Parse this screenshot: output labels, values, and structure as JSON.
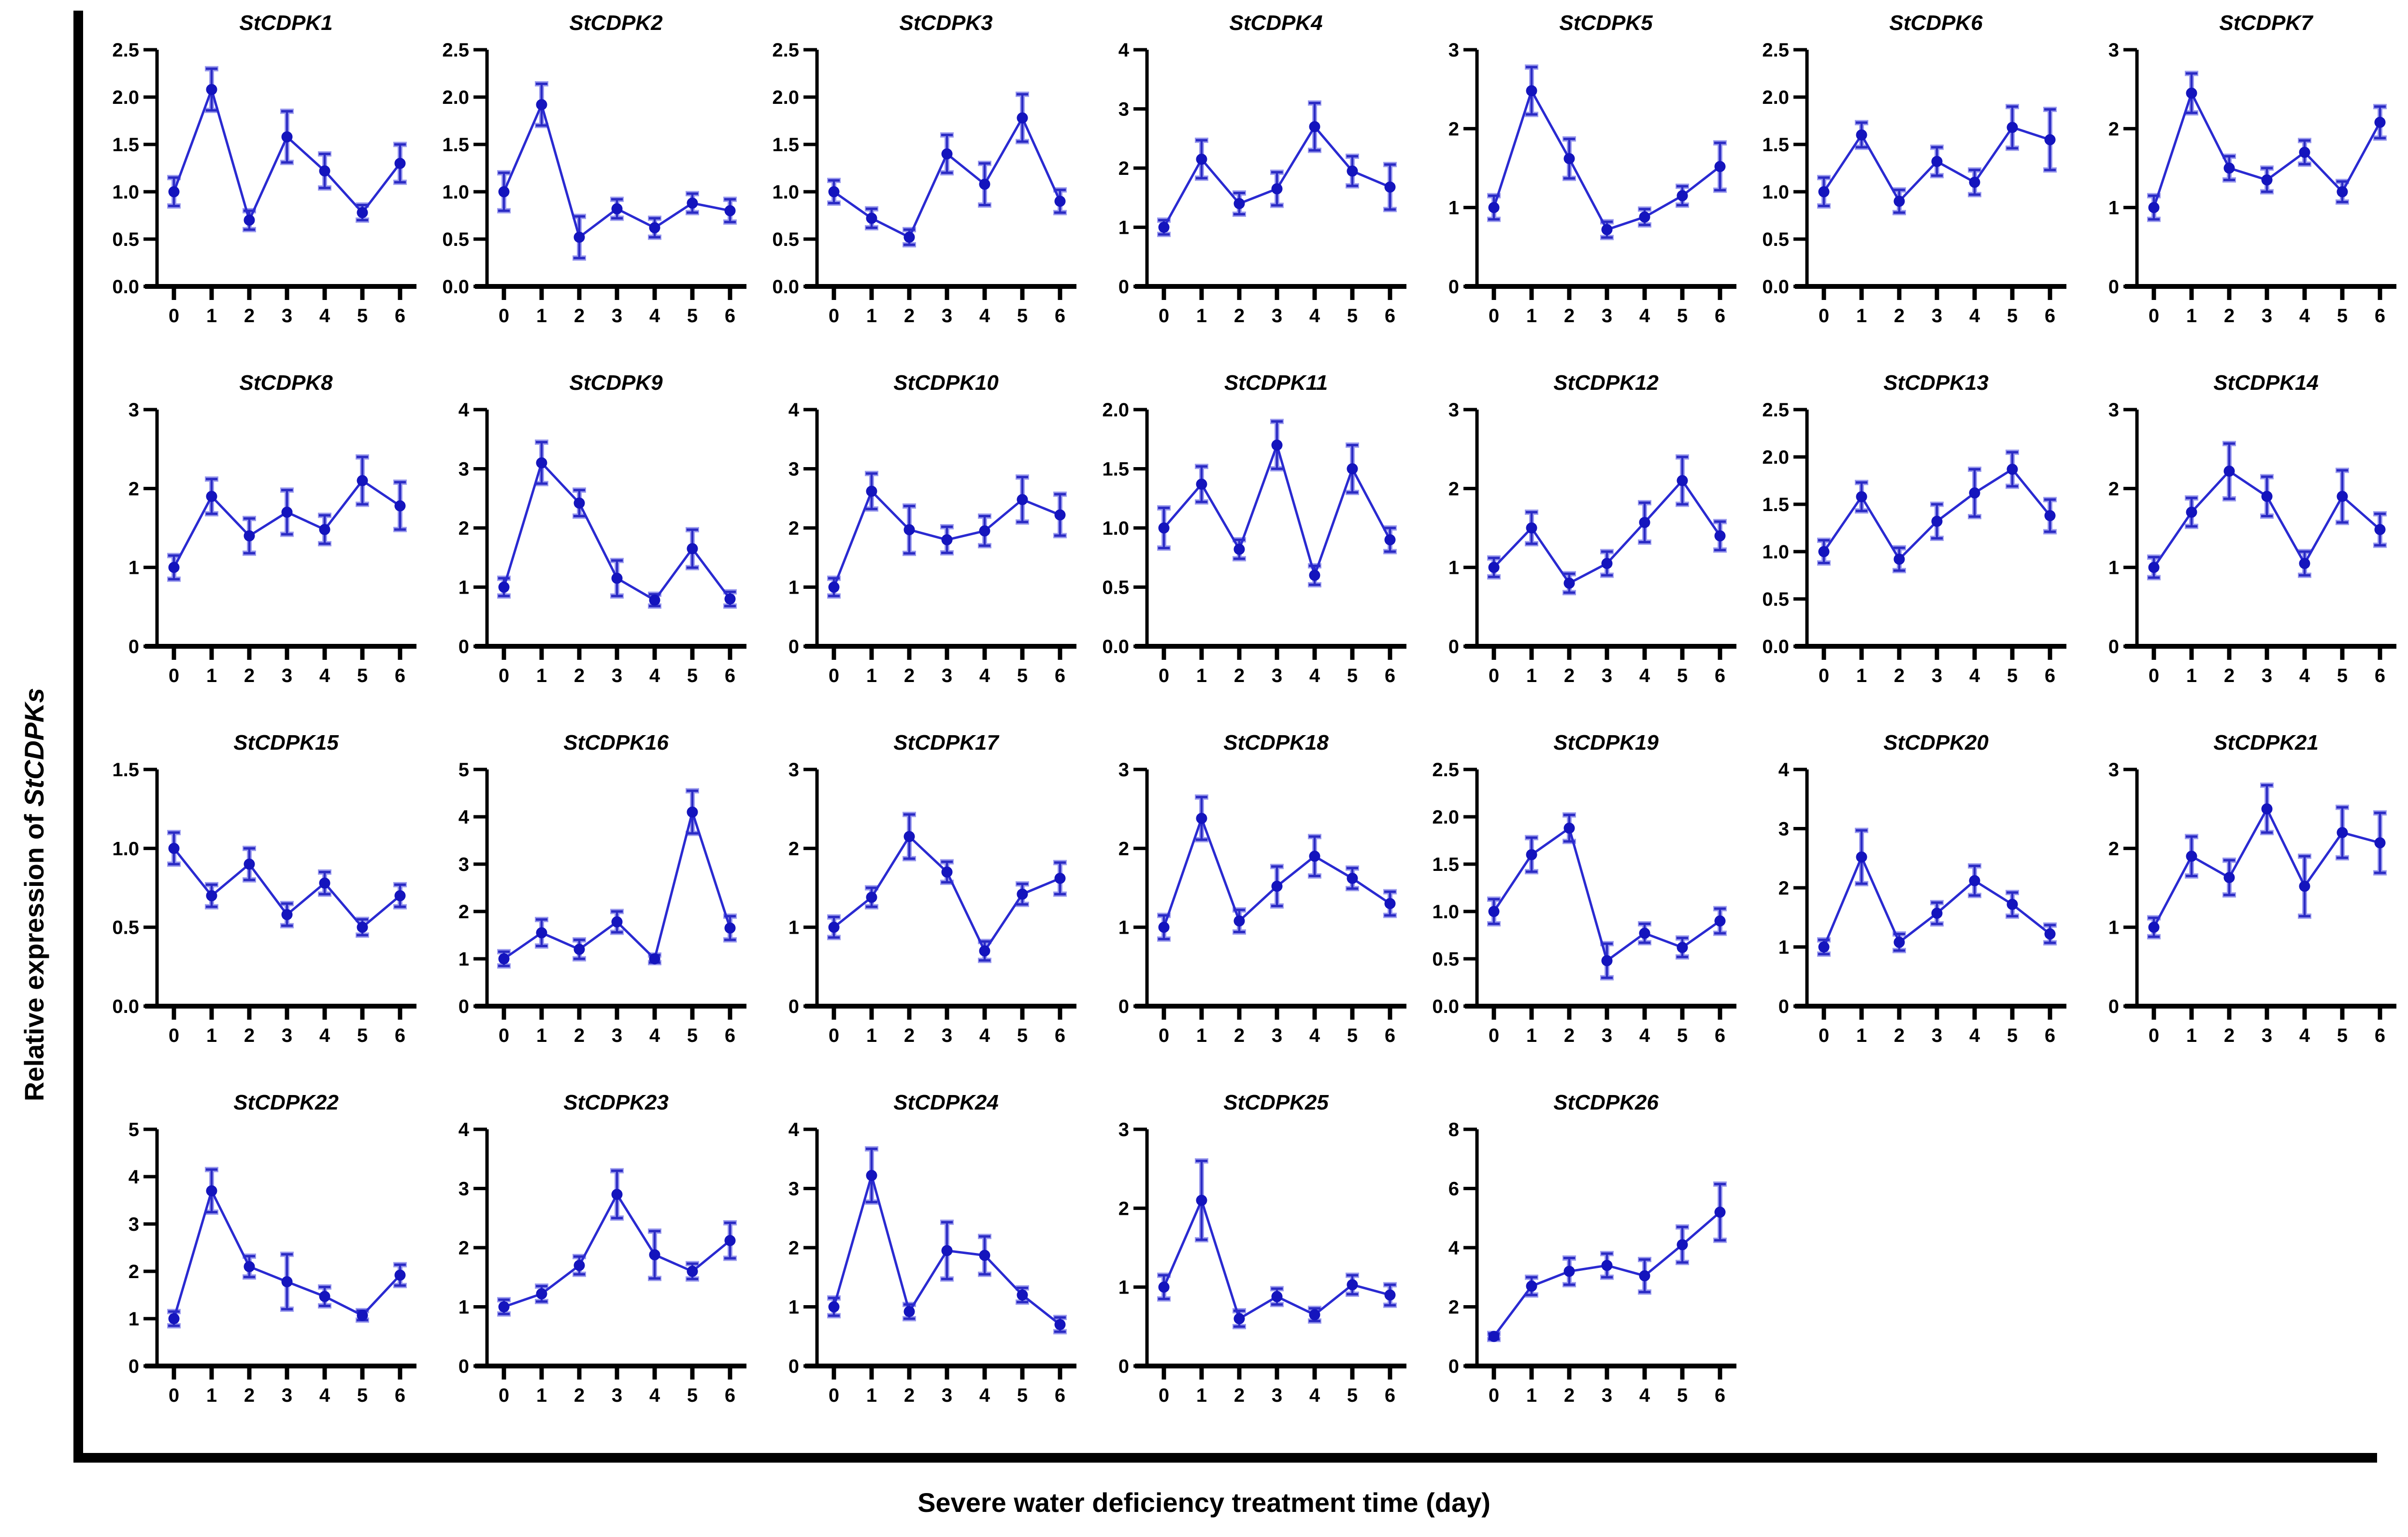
{
  "figure": {
    "y_axis_label_prefix": "Relative expression of ",
    "y_axis_label_gene": "StCDPKs",
    "x_axis_label": "Severe water deficiency treatment time (day)",
    "x_ticks": [
      0,
      1,
      2,
      3,
      4,
      5,
      6
    ],
    "colors": {
      "line": "#2a2ad1",
      "marker": "#1414bd",
      "error_bar_core": "#2b2bc4",
      "error_bar_halo": "#9a9aee",
      "axis": "#000000",
      "background": "#ffffff"
    }
  },
  "chart_data": [
    {
      "type": "line",
      "title": "StCDPK1",
      "x": [
        0,
        1,
        2,
        3,
        4,
        5,
        6
      ],
      "values": [
        1.0,
        2.08,
        0.7,
        1.58,
        1.22,
        0.78,
        1.3
      ],
      "errors": [
        0.15,
        0.22,
        0.1,
        0.27,
        0.18,
        0.08,
        0.2
      ],
      "ylim": [
        0,
        2.5
      ],
      "ytick_step": 0.5,
      "ytick_decimals": 1
    },
    {
      "type": "line",
      "title": "StCDPK2",
      "x": [
        0,
        1,
        2,
        3,
        4,
        5,
        6
      ],
      "values": [
        1.0,
        1.92,
        0.52,
        0.82,
        0.62,
        0.88,
        0.8
      ],
      "errors": [
        0.2,
        0.22,
        0.22,
        0.1,
        0.1,
        0.1,
        0.12
      ],
      "ylim": [
        0,
        2.5
      ],
      "ytick_step": 0.5,
      "ytick_decimals": 1
    },
    {
      "type": "line",
      "title": "StCDPK3",
      "x": [
        0,
        1,
        2,
        3,
        4,
        5,
        6
      ],
      "values": [
        1.0,
        0.72,
        0.52,
        1.4,
        1.08,
        1.78,
        0.9
      ],
      "errors": [
        0.12,
        0.1,
        0.08,
        0.2,
        0.22,
        0.25,
        0.12
      ],
      "ylim": [
        0,
        2.5
      ],
      "ytick_step": 0.5,
      "ytick_decimals": 1
    },
    {
      "type": "line",
      "title": "StCDPK4",
      "x": [
        0,
        1,
        2,
        3,
        4,
        5,
        6
      ],
      "values": [
        1.0,
        2.15,
        1.4,
        1.65,
        2.7,
        1.95,
        1.68
      ],
      "errors": [
        0.12,
        0.32,
        0.18,
        0.28,
        0.4,
        0.25,
        0.38
      ],
      "ylim": [
        0,
        4
      ],
      "ytick_step": 1,
      "ytick_decimals": 0
    },
    {
      "type": "line",
      "title": "StCDPK5",
      "x": [
        0,
        1,
        2,
        3,
        4,
        5,
        6
      ],
      "values": [
        1.0,
        2.48,
        1.62,
        0.72,
        0.88,
        1.15,
        1.52
      ],
      "errors": [
        0.15,
        0.3,
        0.25,
        0.1,
        0.1,
        0.12,
        0.3
      ],
      "ylim": [
        0,
        3
      ],
      "ytick_step": 1,
      "ytick_decimals": 0
    },
    {
      "type": "line",
      "title": "StCDPK6",
      "x": [
        0,
        1,
        2,
        3,
        4,
        5,
        6
      ],
      "values": [
        1.0,
        1.6,
        0.9,
        1.32,
        1.1,
        1.68,
        1.55
      ],
      "errors": [
        0.15,
        0.13,
        0.12,
        0.15,
        0.13,
        0.22,
        0.32
      ],
      "ylim": [
        0,
        2.5
      ],
      "ytick_step": 0.5,
      "ytick_decimals": 1
    },
    {
      "type": "line",
      "title": "StCDPK7",
      "x": [
        0,
        1,
        2,
        3,
        4,
        5,
        6
      ],
      "values": [
        1.0,
        2.45,
        1.5,
        1.35,
        1.7,
        1.2,
        2.08
      ],
      "errors": [
        0.15,
        0.25,
        0.15,
        0.15,
        0.15,
        0.13,
        0.2
      ],
      "ylim": [
        0,
        3
      ],
      "ytick_step": 1,
      "ytick_decimals": 0
    },
    {
      "type": "line",
      "title": "StCDPK8",
      "x": [
        0,
        1,
        2,
        3,
        4,
        5,
        6
      ],
      "values": [
        1.0,
        1.9,
        1.4,
        1.7,
        1.48,
        2.1,
        1.78
      ],
      "errors": [
        0.15,
        0.22,
        0.22,
        0.28,
        0.18,
        0.3,
        0.3
      ],
      "ylim": [
        0,
        3
      ],
      "ytick_step": 1,
      "ytick_decimals": 0
    },
    {
      "type": "line",
      "title": "StCDPK9",
      "x": [
        0,
        1,
        2,
        3,
        4,
        5,
        6
      ],
      "values": [
        1.0,
        3.1,
        2.42,
        1.15,
        0.78,
        1.65,
        0.8
      ],
      "errors": [
        0.15,
        0.35,
        0.22,
        0.3,
        0.1,
        0.32,
        0.12
      ],
      "ylim": [
        0,
        4
      ],
      "ytick_step": 1,
      "ytick_decimals": 0
    },
    {
      "type": "line",
      "title": "StCDPK10",
      "x": [
        0,
        1,
        2,
        3,
        4,
        5,
        6
      ],
      "values": [
        1.0,
        2.62,
        1.97,
        1.8,
        1.95,
        2.48,
        2.22
      ],
      "errors": [
        0.15,
        0.3,
        0.4,
        0.22,
        0.25,
        0.38,
        0.35
      ],
      "ylim": [
        0,
        4
      ],
      "ytick_step": 1,
      "ytick_decimals": 0
    },
    {
      "type": "line",
      "title": "StCDPK11",
      "x": [
        0,
        1,
        2,
        3,
        4,
        5,
        6
      ],
      "values": [
        1.0,
        1.37,
        0.82,
        1.7,
        0.6,
        1.5,
        0.9
      ],
      "errors": [
        0.17,
        0.15,
        0.08,
        0.2,
        0.08,
        0.2,
        0.1
      ],
      "ylim": [
        0,
        2.0
      ],
      "ytick_step": 0.5,
      "ytick_decimals": 1
    },
    {
      "type": "line",
      "title": "StCDPK12",
      "x": [
        0,
        1,
        2,
        3,
        4,
        5,
        6
      ],
      "values": [
        1.0,
        1.5,
        0.8,
        1.05,
        1.57,
        2.1,
        1.4
      ],
      "errors": [
        0.12,
        0.2,
        0.12,
        0.15,
        0.25,
        0.3,
        0.18
      ],
      "ylim": [
        0,
        3
      ],
      "ytick_step": 1,
      "ytick_decimals": 0
    },
    {
      "type": "line",
      "title": "StCDPK13",
      "x": [
        0,
        1,
        2,
        3,
        4,
        5,
        6
      ],
      "values": [
        1.0,
        1.58,
        0.92,
        1.32,
        1.62,
        1.87,
        1.38
      ],
      "errors": [
        0.12,
        0.15,
        0.12,
        0.18,
        0.25,
        0.18,
        0.17
      ],
      "ylim": [
        0,
        2.5
      ],
      "ytick_step": 0.5,
      "ytick_decimals": 1
    },
    {
      "type": "line",
      "title": "StCDPK14",
      "x": [
        0,
        1,
        2,
        3,
        4,
        5,
        6
      ],
      "values": [
        1.0,
        1.7,
        2.22,
        1.9,
        1.05,
        1.9,
        1.48
      ],
      "errors": [
        0.13,
        0.18,
        0.35,
        0.25,
        0.15,
        0.33,
        0.2
      ],
      "ylim": [
        0,
        3
      ],
      "ytick_step": 1,
      "ytick_decimals": 0
    },
    {
      "type": "line",
      "title": "StCDPK15",
      "x": [
        0,
        1,
        2,
        3,
        4,
        5,
        6
      ],
      "values": [
        1.0,
        0.7,
        0.9,
        0.58,
        0.78,
        0.5,
        0.7
      ],
      "errors": [
        0.1,
        0.07,
        0.1,
        0.07,
        0.07,
        0.05,
        0.07
      ],
      "ylim": [
        0,
        1.5
      ],
      "ytick_step": 0.5,
      "ytick_decimals": 1
    },
    {
      "type": "line",
      "title": "StCDPK16",
      "x": [
        0,
        1,
        2,
        3,
        4,
        5,
        6
      ],
      "values": [
        1.0,
        1.55,
        1.2,
        1.78,
        1.0,
        4.1,
        1.65
      ],
      "errors": [
        0.15,
        0.28,
        0.2,
        0.22,
        0.08,
        0.45,
        0.25
      ],
      "ylim": [
        0,
        5
      ],
      "ytick_step": 1,
      "ytick_decimals": 0
    },
    {
      "type": "line",
      "title": "StCDPK17",
      "x": [
        0,
        1,
        2,
        3,
        4,
        5,
        6
      ],
      "values": [
        1.0,
        1.38,
        2.15,
        1.7,
        0.7,
        1.42,
        1.62
      ],
      "errors": [
        0.13,
        0.12,
        0.28,
        0.13,
        0.12,
        0.13,
        0.2
      ],
      "ylim": [
        0,
        3
      ],
      "ytick_step": 1,
      "ytick_decimals": 0
    },
    {
      "type": "line",
      "title": "StCDPK18",
      "x": [
        0,
        1,
        2,
        3,
        4,
        5,
        6
      ],
      "values": [
        1.0,
        2.38,
        1.08,
        1.52,
        1.9,
        1.62,
        1.3
      ],
      "errors": [
        0.15,
        0.27,
        0.14,
        0.25,
        0.25,
        0.13,
        0.15
      ],
      "ylim": [
        0,
        3
      ],
      "ytick_step": 1,
      "ytick_decimals": 0
    },
    {
      "type": "line",
      "title": "StCDPK19",
      "x": [
        0,
        1,
        2,
        3,
        4,
        5,
        6
      ],
      "values": [
        1.0,
        1.6,
        1.88,
        0.48,
        0.77,
        0.62,
        0.9
      ],
      "errors": [
        0.13,
        0.18,
        0.14,
        0.18,
        0.1,
        0.1,
        0.13
      ],
      "ylim": [
        0,
        2.5
      ],
      "ytick_step": 0.5,
      "ytick_decimals": 1
    },
    {
      "type": "line",
      "title": "StCDPK20",
      "x": [
        0,
        1,
        2,
        3,
        4,
        5,
        6
      ],
      "values": [
        1.0,
        2.52,
        1.08,
        1.57,
        2.12,
        1.72,
        1.22
      ],
      "errors": [
        0.12,
        0.45,
        0.14,
        0.18,
        0.25,
        0.2,
        0.15
      ],
      "ylim": [
        0,
        4
      ],
      "ytick_step": 1,
      "ytick_decimals": 0
    },
    {
      "type": "line",
      "title": "StCDPK21",
      "x": [
        0,
        1,
        2,
        3,
        4,
        5,
        6
      ],
      "values": [
        1.0,
        1.9,
        1.63,
        2.5,
        1.52,
        2.2,
        2.07
      ],
      "errors": [
        0.12,
        0.25,
        0.22,
        0.3,
        0.38,
        0.32,
        0.38
      ],
      "ylim": [
        0,
        3
      ],
      "ytick_step": 1,
      "ytick_decimals": 0
    },
    {
      "type": "line",
      "title": "StCDPK22",
      "x": [
        0,
        1,
        2,
        3,
        4,
        5,
        6
      ],
      "values": [
        1.0,
        3.7,
        2.1,
        1.78,
        1.47,
        1.07,
        1.92
      ],
      "errors": [
        0.15,
        0.45,
        0.22,
        0.58,
        0.2,
        0.1,
        0.22
      ],
      "ylim": [
        0,
        5
      ],
      "ytick_step": 1,
      "ytick_decimals": 0
    },
    {
      "type": "line",
      "title": "StCDPK23",
      "x": [
        0,
        1,
        2,
        3,
        4,
        5,
        6
      ],
      "values": [
        1.0,
        1.22,
        1.7,
        2.9,
        1.88,
        1.6,
        2.12
      ],
      "errors": [
        0.12,
        0.13,
        0.15,
        0.4,
        0.4,
        0.13,
        0.3
      ],
      "ylim": [
        0,
        4
      ],
      "ytick_step": 1,
      "ytick_decimals": 0
    },
    {
      "type": "line",
      "title": "StCDPK24",
      "x": [
        0,
        1,
        2,
        3,
        4,
        5,
        6
      ],
      "values": [
        1.0,
        3.22,
        0.92,
        1.95,
        1.87,
        1.2,
        0.7
      ],
      "errors": [
        0.15,
        0.45,
        0.12,
        0.48,
        0.32,
        0.12,
        0.12
      ],
      "ylim": [
        0,
        4
      ],
      "ytick_step": 1,
      "ytick_decimals": 0
    },
    {
      "type": "line",
      "title": "StCDPK25",
      "x": [
        0,
        1,
        2,
        3,
        4,
        5,
        6
      ],
      "values": [
        1.0,
        2.1,
        0.6,
        0.88,
        0.65,
        1.03,
        0.9
      ],
      "errors": [
        0.15,
        0.5,
        0.1,
        0.1,
        0.08,
        0.12,
        0.13
      ],
      "ylim": [
        0,
        3
      ],
      "ytick_step": 1,
      "ytick_decimals": 0
    },
    {
      "type": "line",
      "title": "StCDPK26",
      "x": [
        0,
        1,
        2,
        3,
        4,
        5,
        6
      ],
      "values": [
        1.0,
        2.7,
        3.2,
        3.4,
        3.05,
        4.1,
        5.2
      ],
      "errors": [
        0.1,
        0.3,
        0.45,
        0.4,
        0.55,
        0.6,
        0.95
      ],
      "ylim": [
        0,
        8
      ],
      "ytick_step": 2,
      "ytick_decimals": 0
    }
  ]
}
